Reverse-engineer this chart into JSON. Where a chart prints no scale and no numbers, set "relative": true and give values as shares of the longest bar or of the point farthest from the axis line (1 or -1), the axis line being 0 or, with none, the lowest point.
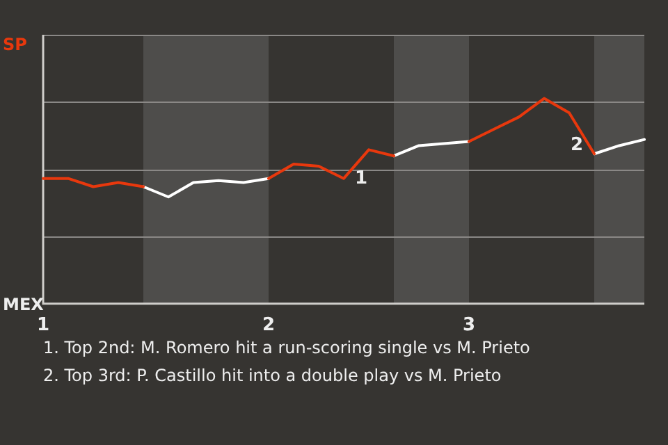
{
  "chart_data": {
    "type": "line",
    "relative": true,
    "categories": [
      "1",
      null,
      null,
      null,
      null,
      null,
      null,
      null,
      null,
      "2",
      null,
      null,
      null,
      null,
      null,
      null,
      null,
      "3",
      null,
      null,
      null,
      null,
      null,
      null,
      null
    ],
    "grid": "y",
    "legend": false,
    "marker": "none",
    "line_style": "solid",
    "series": [
      {
        "color": "#e8380d",
        "values": [
          0.61,
          0.61,
          0.57,
          0.59,
          0.57,
          null,
          null,
          null,
          null,
          0.61,
          0.68,
          0.67,
          0.61,
          0.75,
          0.72,
          null,
          null,
          0.79,
          0.85,
          0.91,
          1,
          0.93,
          0.73,
          null,
          null
        ]
      },
      {
        "color": "#ffffff",
        "values": [
          null,
          null,
          null,
          null,
          0.57,
          0.52,
          0.59,
          0.6,
          0.59,
          0.61,
          null,
          null,
          null,
          null,
          0.72,
          0.77,
          0.78,
          0.79,
          null,
          null,
          null,
          null,
          0.73,
          0.77,
          0.8
        ]
      }
    ],
    "annotations": [
      "SP",
      "MEX",
      "1",
      "2",
      "1. Top 2nd: M. Romero hit a run-scoring single vs M. Prieto",
      "2. Top 3rd: P. Castillo hit into a double play vs M. Prieto"
    ]
  }
}
